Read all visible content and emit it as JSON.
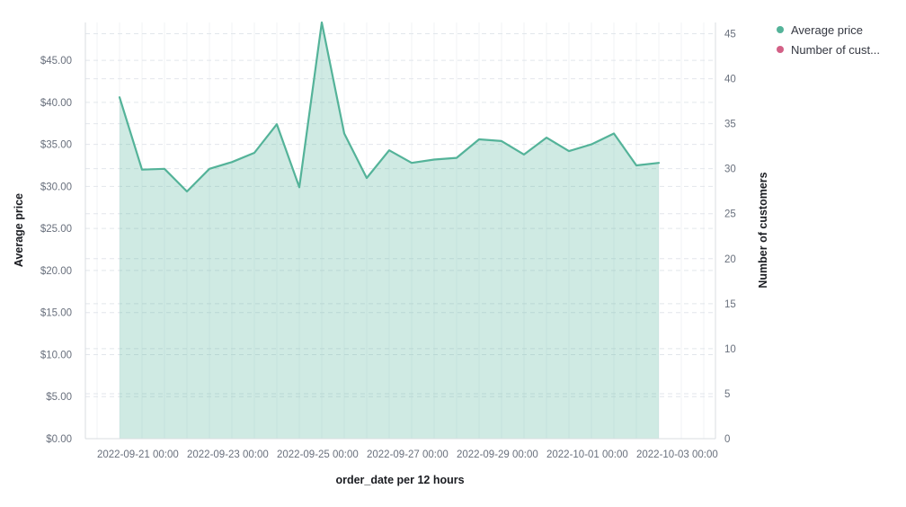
{
  "page": {
    "background": "#ffffff"
  },
  "legend": {
    "items": [
      {
        "label": "Average price",
        "color": "#54b399"
      },
      {
        "label": "Number of cust...",
        "color": "#d36086"
      }
    ]
  },
  "axes": {
    "left": {
      "title": "Average price"
    },
    "right": {
      "title": "Number of customers"
    },
    "bottom": {
      "title": "order_date per 12 hours"
    }
  },
  "chart_data": {
    "type": "area",
    "title": "",
    "xlabel": "order_date per 12 hours",
    "ylabel_left": "Average price",
    "ylabel_right": "Number of customers",
    "x_interval": "12 hours",
    "x": [
      "2022-09-21 12:00",
      "2022-09-22 00:00",
      "2022-09-22 12:00",
      "2022-09-23 00:00",
      "2022-09-23 12:00",
      "2022-09-24 00:00",
      "2022-09-24 12:00",
      "2022-09-25 00:00",
      "2022-09-25 12:00",
      "2022-09-26 00:00",
      "2022-09-26 12:00",
      "2022-09-27 00:00",
      "2022-09-27 12:00",
      "2022-09-28 00:00",
      "2022-09-28 12:00",
      "2022-09-29 00:00",
      "2022-09-29 12:00",
      "2022-09-30 00:00",
      "2022-09-30 12:00",
      "2022-10-01 00:00",
      "2022-10-01 12:00",
      "2022-10-02 00:00",
      "2022-10-02 12:00",
      "2022-10-03 00:00",
      "2022-10-03 12:00"
    ],
    "series": [
      {
        "name": "Average price",
        "color": "#54b399",
        "fill": "rgba(84,179,153,0.28)",
        "values": [
          40.6,
          32.0,
          32.1,
          29.4,
          32.1,
          32.9,
          34.0,
          37.4,
          29.9,
          49.5,
          36.3,
          31.0,
          34.3,
          32.8,
          33.2,
          33.4,
          35.6,
          35.4,
          33.8,
          35.8,
          34.2,
          35.0,
          36.3,
          32.5,
          32.8
        ]
      },
      {
        "name": "Number of customers",
        "color": "#d36086",
        "visible_in_plot": false
      }
    ],
    "ylim_left": [
      0,
      49.5
    ],
    "ylim_right": [
      0,
      46.25
    ],
    "left_ticks": [
      {
        "value": 0,
        "label": "$0.00"
      },
      {
        "value": 5,
        "label": "$5.00"
      },
      {
        "value": 10,
        "label": "$10.00"
      },
      {
        "value": 15,
        "label": "$15.00"
      },
      {
        "value": 20,
        "label": "$20.00"
      },
      {
        "value": 25,
        "label": "$25.00"
      },
      {
        "value": 30,
        "label": "$30.00"
      },
      {
        "value": 35,
        "label": "$35.00"
      },
      {
        "value": 40,
        "label": "$40.00"
      },
      {
        "value": 45,
        "label": "$45.00"
      }
    ],
    "right_ticks": [
      {
        "value": 0,
        "label": "0"
      },
      {
        "value": 5,
        "label": "5"
      },
      {
        "value": 10,
        "label": "10"
      },
      {
        "value": 15,
        "label": "15"
      },
      {
        "value": 20,
        "label": "20"
      },
      {
        "value": 25,
        "label": "25"
      },
      {
        "value": 30,
        "label": "30"
      },
      {
        "value": 35,
        "label": "35"
      },
      {
        "value": 40,
        "label": "40"
      },
      {
        "value": 45,
        "label": "45"
      }
    ],
    "bottom_ticks": [
      "2022-09-21 00:00",
      "2022-09-23 00:00",
      "2022-09-25 00:00",
      "2022-09-27 00:00",
      "2022-09-29 00:00",
      "2022-10-01 00:00",
      "2022-10-03 00:00"
    ],
    "grid": {
      "vertical": true,
      "horizontal_dashed": true
    },
    "legend_position": "right"
  },
  "colors": {
    "line": "#54b399",
    "fill": "rgba(84,179,153,0.28)",
    "grid_vertical": "#f1f3f6",
    "grid_dashed": "#e2e6eb",
    "axis_line": "#d9dde2",
    "tick_text": "#69707d",
    "title_text": "#1a1c21",
    "legend_text": "#343741"
  }
}
